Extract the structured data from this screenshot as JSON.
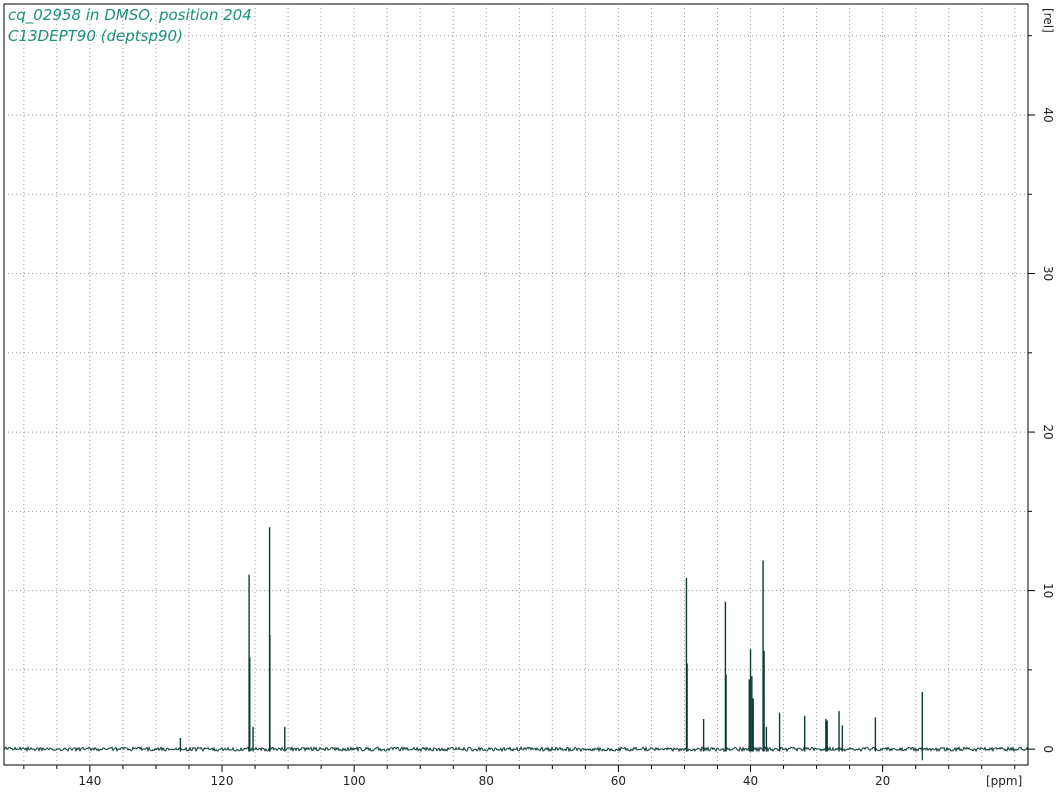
{
  "chart_data": {
    "type": "line",
    "title": "cq_02958 in DMSO, position 204",
    "subtitle": "C13DEPT90 (deptsp90)",
    "xlabel": "[ppm]",
    "ylabel": "[rel]",
    "xlim": [
      153,
      -2
    ],
    "ylim": [
      -1,
      47
    ],
    "x_ticks": [
      140,
      120,
      100,
      80,
      60,
      40,
      20
    ],
    "x_minor_step": 5,
    "y_ticks": [
      0,
      10,
      20,
      30,
      40
    ],
    "y_minor_step": 5,
    "grid": true,
    "series_color": "#0d3b36",
    "peaks": [
      {
        "ppm": 126.3,
        "height": 0.7
      },
      {
        "ppm": 115.9,
        "height": 11.0
      },
      {
        "ppm": 115.8,
        "height": 5.8
      },
      {
        "ppm": 115.3,
        "height": 1.4
      },
      {
        "ppm": 112.8,
        "height": 14.0
      },
      {
        "ppm": 112.75,
        "height": 7.2
      },
      {
        "ppm": 110.5,
        "height": 1.4
      },
      {
        "ppm": 49.7,
        "height": 10.8
      },
      {
        "ppm": 49.6,
        "height": 5.4
      },
      {
        "ppm": 47.1,
        "height": 1.9
      },
      {
        "ppm": 43.8,
        "height": 9.3
      },
      {
        "ppm": 43.7,
        "height": 4.7
      },
      {
        "ppm": 40.2,
        "height": 4.4
      },
      {
        "ppm": 40.0,
        "height": 6.3
      },
      {
        "ppm": 39.8,
        "height": 4.6
      },
      {
        "ppm": 39.6,
        "height": 3.2
      },
      {
        "ppm": 38.1,
        "height": 11.9
      },
      {
        "ppm": 37.95,
        "height": 6.2
      },
      {
        "ppm": 37.6,
        "height": 1.4
      },
      {
        "ppm": 35.6,
        "height": 2.3
      },
      {
        "ppm": 31.8,
        "height": 2.1
      },
      {
        "ppm": 28.6,
        "height": 1.9
      },
      {
        "ppm": 28.4,
        "height": 1.8
      },
      {
        "ppm": 26.6,
        "height": 2.4
      },
      {
        "ppm": 26.1,
        "height": 1.5
      },
      {
        "ppm": 21.1,
        "height": 2.0
      },
      {
        "ppm": 14.0,
        "height": 3.6
      }
    ],
    "baseline_noise": 0.12
  }
}
